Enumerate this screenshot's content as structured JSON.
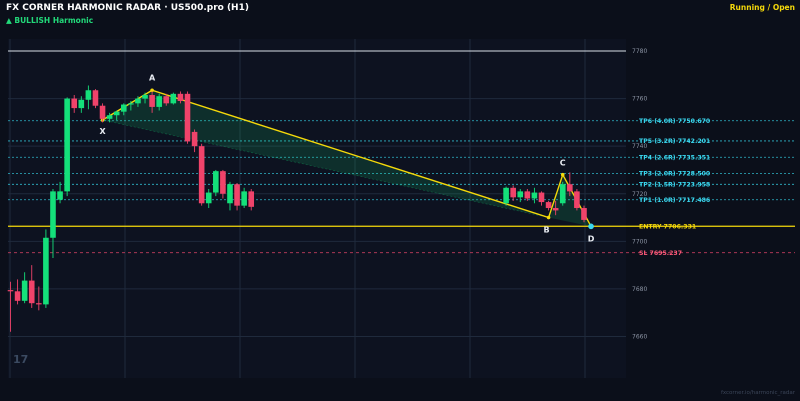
{
  "header": {
    "title": "FX CORNER HARMONIC RADAR  ·  US500.pro (H1)",
    "status": "Running / Open",
    "pattern": "▲ BULLISH  Harmonic"
  },
  "colors": {
    "background": "#0b0f1a",
    "bull_candle": "#14e07a",
    "bear_candle": "#f0436a",
    "pattern_line": "#f5d90a",
    "tp_label": "#3ad8f0",
    "entry_label": "#f5d90a",
    "sl_label": "#ff5a7a"
  },
  "chart_data": {
    "type": "candlestick",
    "y_ticks": [
      "7780",
      "7760",
      "7740",
      "7720",
      "7700",
      "7680",
      "7660"
    ],
    "ylim": [
      7650,
      7792
    ],
    "candles": [
      {
        "i": 0,
        "o": 7679.5,
        "h": 7683.0,
        "l": 7662.0,
        "c": 7679.0
      },
      {
        "i": 1,
        "o": 7679.0,
        "h": 7684.0,
        "l": 7673.5,
        "c": 7675.0
      },
      {
        "i": 2,
        "o": 7675.0,
        "h": 7687.0,
        "l": 7674.0,
        "c": 7683.5
      },
      {
        "i": 3,
        "o": 7683.5,
        "h": 7690.0,
        "l": 7672.0,
        "c": 7674.0
      },
      {
        "i": 4,
        "o": 7674.0,
        "h": 7681.0,
        "l": 7671.0,
        "c": 7673.5
      },
      {
        "i": 5,
        "o": 7673.5,
        "h": 7705.0,
        "l": 7672.0,
        "c": 7701.5
      },
      {
        "i": 6,
        "o": 7701.5,
        "h": 7722.0,
        "l": 7693.0,
        "c": 7721.0
      },
      {
        "i": 7,
        "o": 7717.5,
        "h": 7725.0,
        "l": 7716.0,
        "c": 7721.0
      },
      {
        "i": 8,
        "o": 7721.0,
        "h": 7760.5,
        "l": 7719.0,
        "c": 7760.0
      },
      {
        "i": 9,
        "o": 7760.0,
        "h": 7761.5,
        "l": 7754.0,
        "c": 7756.0
      },
      {
        "i": 10,
        "o": 7756.0,
        "h": 7761.0,
        "l": 7754.0,
        "c": 7759.5
      },
      {
        "i": 11,
        "o": 7759.5,
        "h": 7765.5,
        "l": 7755.5,
        "c": 7763.5
      },
      {
        "i": 12,
        "o": 7763.5,
        "h": 7764.0,
        "l": 7756.0,
        "c": 7757.0
      },
      {
        "i": 13,
        "o": 7757.0,
        "h": 7758.0,
        "l": 7750.0,
        "c": 7751.5
      },
      {
        "i": 14,
        "o": 7751.5,
        "h": 7754.0,
        "l": 7750.0,
        "c": 7753.0
      },
      {
        "i": 15,
        "o": 7753.0,
        "h": 7755.0,
        "l": 7751.0,
        "c": 7754.5
      },
      {
        "i": 16,
        "o": 7754.5,
        "h": 7758.0,
        "l": 7753.0,
        "c": 7757.5
      },
      {
        "i": 17,
        "o": 7757.5,
        "h": 7759.0,
        "l": 7755.0,
        "c": 7758.0
      },
      {
        "i": 18,
        "o": 7758.0,
        "h": 7761.0,
        "l": 7756.5,
        "c": 7760.0
      },
      {
        "i": 19,
        "o": 7760.0,
        "h": 7762.5,
        "l": 7758.0,
        "c": 7761.5
      },
      {
        "i": 20,
        "o": 7761.5,
        "h": 7763.0,
        "l": 7754.0,
        "c": 7756.5
      },
      {
        "i": 21,
        "o": 7756.5,
        "h": 7762.0,
        "l": 7755.0,
        "c": 7761.0
      },
      {
        "i": 22,
        "o": 7761.0,
        "h": 7762.0,
        "l": 7757.0,
        "c": 7758.0
      },
      {
        "i": 23,
        "o": 7758.0,
        "h": 7762.5,
        "l": 7757.5,
        "c": 7762.0
      },
      {
        "i": 24,
        "o": 7762.0,
        "h": 7763.0,
        "l": 7758.0,
        "c": 7759.0
      },
      {
        "i": 25,
        "o": 7762.0,
        "h": 7763.0,
        "l": 7741.0,
        "c": 7742.0
      },
      {
        "i": 26,
        "o": 7746.0,
        "h": 7747.0,
        "l": 7737.5,
        "c": 7740.0
      },
      {
        "i": 27,
        "o": 7740.0,
        "h": 7741.0,
        "l": 7715.0,
        "c": 7716.0
      },
      {
        "i": 28,
        "o": 7716.0,
        "h": 7722.0,
        "l": 7714.0,
        "c": 7720.5
      },
      {
        "i": 29,
        "o": 7720.5,
        "h": 7730.0,
        "l": 7719.0,
        "c": 7729.5
      },
      {
        "i": 30,
        "o": 7729.5,
        "h": 7730.0,
        "l": 7718.0,
        "c": 7720.0
      },
      {
        "i": 31,
        "o": 7716.0,
        "h": 7725.0,
        "l": 7713.0,
        "c": 7724.0
      },
      {
        "i": 32,
        "o": 7724.0,
        "h": 7724.5,
        "l": 7713.0,
        "c": 7715.0
      },
      {
        "i": 33,
        "o": 7715.0,
        "h": 7722.5,
        "l": 7714.0,
        "c": 7721.0
      },
      {
        "i": 34,
        "o": 7721.0,
        "h": 7722.0,
        "l": 7713.0,
        "c": 7714.5
      },
      {
        "i": 70,
        "o": 7716.0,
        "h": 7723.0,
        "l": 7715.0,
        "c": 7722.5
      },
      {
        "i": 71,
        "o": 7722.5,
        "h": 7723.5,
        "l": 7717.0,
        "c": 7718.5
      },
      {
        "i": 72,
        "o": 7718.5,
        "h": 7722.0,
        "l": 7716.5,
        "c": 7721.0
      },
      {
        "i": 73,
        "o": 7721.0,
        "h": 7722.0,
        "l": 7717.0,
        "c": 7718.0
      },
      {
        "i": 74,
        "o": 7718.0,
        "h": 7722.5,
        "l": 7716.0,
        "c": 7720.5
      },
      {
        "i": 75,
        "o": 7720.5,
        "h": 7721.0,
        "l": 7715.0,
        "c": 7716.5
      },
      {
        "i": 76,
        "o": 7716.5,
        "h": 7717.0,
        "l": 7713.0,
        "c": 7714.0
      },
      {
        "i": 77,
        "o": 7714.0,
        "h": 7717.0,
        "l": 7711.0,
        "c": 7713.0
      },
      {
        "i": 78,
        "o": 7716.0,
        "h": 7725.0,
        "l": 7715.0,
        "c": 7724.0
      },
      {
        "i": 79,
        "o": 7724.0,
        "h": 7729.0,
        "l": 7719.0,
        "c": 7721.0
      },
      {
        "i": 80,
        "o": 7721.0,
        "h": 7722.0,
        "l": 7713.0,
        "c": 7714.0
      },
      {
        "i": 81,
        "o": 7714.0,
        "h": 7715.0,
        "l": 7708.0,
        "c": 7709.0
      }
    ],
    "pattern_points": [
      {
        "label": "X",
        "i": 13,
        "price": 7751.0
      },
      {
        "label": "A",
        "i": 20,
        "price": 7763.5
      },
      {
        "label": "B",
        "i": 76,
        "price": 7710.0
      },
      {
        "label": "C",
        "i": 78,
        "price": 7728.0
      },
      {
        "label": "D",
        "i": 82,
        "price": 7706.3
      }
    ],
    "levels": [
      {
        "label": "TP6 (4.0R)  7750.670",
        "price": 7750.67,
        "kind": "tp"
      },
      {
        "label": "TP5 (3.2R)  7742.201",
        "price": 7742.201,
        "kind": "tp"
      },
      {
        "label": "TP4 (2.6R)  7735.351",
        "price": 7735.351,
        "kind": "tp"
      },
      {
        "label": "TP3 (2.0R)  7728.500",
        "price": 7728.5,
        "kind": "tp"
      },
      {
        "label": "TP2 (1.5R)  7723.958",
        "price": 7723.958,
        "kind": "tp"
      },
      {
        "label": "TP1 (1.0R)  7717.486",
        "price": 7717.486,
        "kind": "tp"
      },
      {
        "label": "ENTRY  7706.331",
        "price": 7706.331,
        "kind": "entry"
      },
      {
        "label": "SL  7695.237",
        "price": 7695.237,
        "kind": "sl"
      }
    ]
  },
  "watermark": "17",
  "footer": "fxcorner.io/harmonic_radar"
}
